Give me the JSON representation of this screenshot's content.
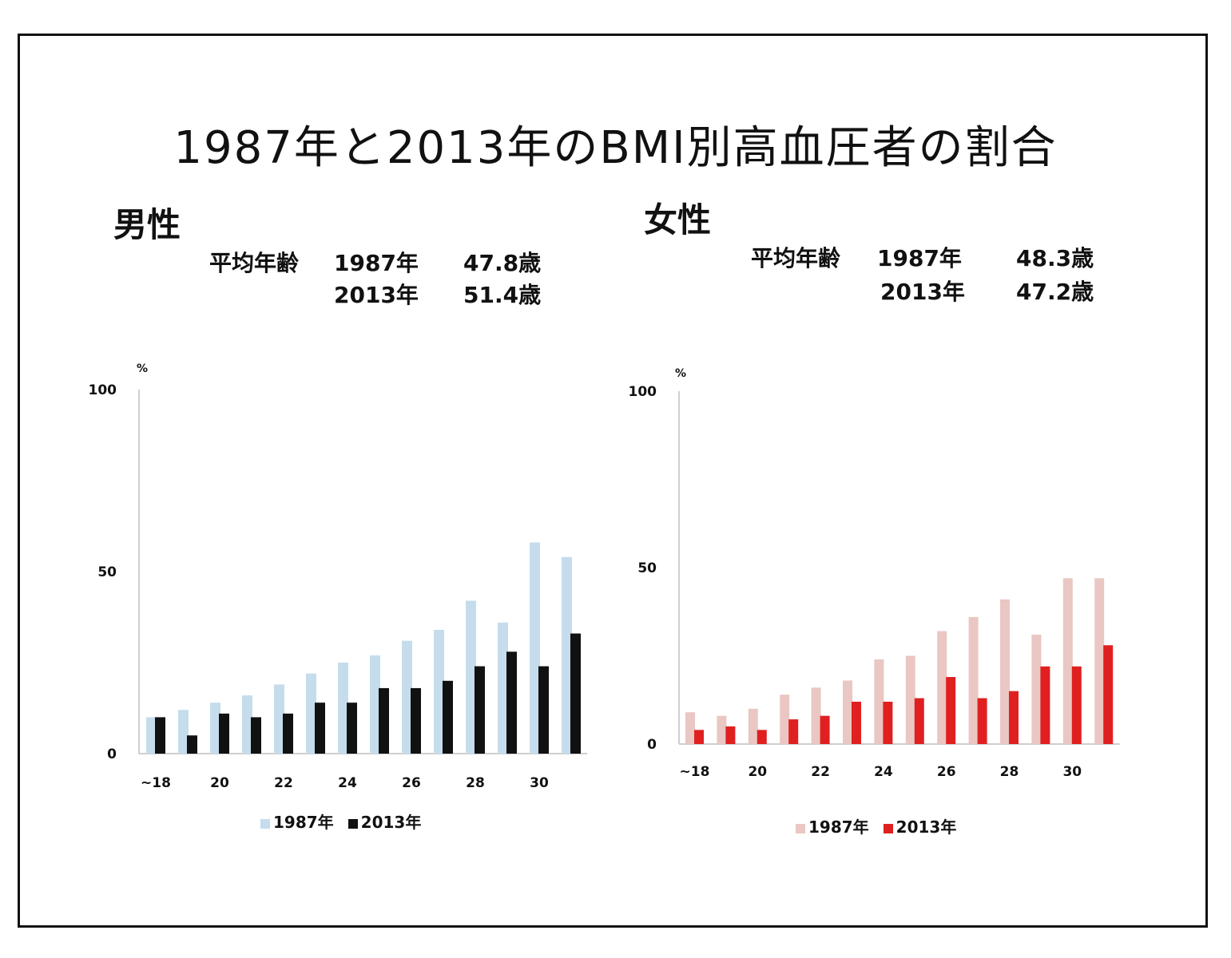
{
  "title": "1987年と2013年のBMI別高血圧者の割合",
  "panels": {
    "male": {
      "label": "男性",
      "avg_label": "平均年齢",
      "rows": [
        {
          "year": "1987年",
          "value": "47.8歳"
        },
        {
          "year": "2013年",
          "value": "51.4歳"
        }
      ]
    },
    "female": {
      "label": "女性",
      "avg_label": "平均年齢",
      "rows": [
        {
          "year": "1987年",
          "value": "48.3歳"
        },
        {
          "year": "2013年",
          "value": "47.2歳"
        }
      ]
    }
  },
  "chart_data": [
    {
      "type": "bar",
      "panel": "男性",
      "unit_label": "%",
      "x_tick_labels": [
        "~18",
        "20",
        "22",
        "24",
        "26",
        "28",
        "30"
      ],
      "categories": [
        "~18",
        "19",
        "20",
        "21",
        "22",
        "23",
        "24",
        "25",
        "26",
        "27",
        "28",
        "29",
        "30",
        "31"
      ],
      "ylim": [
        0,
        100
      ],
      "y_ticks": [
        0,
        50,
        100
      ],
      "grid": false,
      "legend_position": "bottom",
      "series": [
        {
          "name": "1987年",
          "color": "#c5dced",
          "values": [
            10,
            12,
            14,
            16,
            19,
            22,
            25,
            27,
            31,
            34,
            42,
            36,
            58,
            54
          ]
        },
        {
          "name": "2013年",
          "color": "#111111",
          "values": [
            10,
            5,
            11,
            10,
            11,
            14,
            14,
            18,
            18,
            20,
            24,
            28,
            24,
            33
          ]
        }
      ]
    },
    {
      "type": "bar",
      "panel": "女性",
      "unit_label": "%",
      "x_tick_labels": [
        "~18",
        "20",
        "22",
        "24",
        "26",
        "28",
        "30"
      ],
      "categories": [
        "~18",
        "19",
        "20",
        "21",
        "22",
        "23",
        "24",
        "25",
        "26",
        "27",
        "28",
        "29",
        "30",
        "31"
      ],
      "ylim": [
        0,
        100
      ],
      "y_ticks": [
        0,
        50,
        100
      ],
      "grid": false,
      "legend_position": "bottom",
      "series": [
        {
          "name": "1987年",
          "color": "#eac7c2",
          "values": [
            9,
            8,
            10,
            14,
            16,
            18,
            24,
            25,
            32,
            36,
            41,
            31,
            47,
            47
          ]
        },
        {
          "name": "2013年",
          "color": "#e02020",
          "values": [
            4,
            5,
            4,
            7,
            8,
            12,
            12,
            13,
            19,
            13,
            15,
            22,
            22,
            28
          ]
        }
      ]
    }
  ]
}
